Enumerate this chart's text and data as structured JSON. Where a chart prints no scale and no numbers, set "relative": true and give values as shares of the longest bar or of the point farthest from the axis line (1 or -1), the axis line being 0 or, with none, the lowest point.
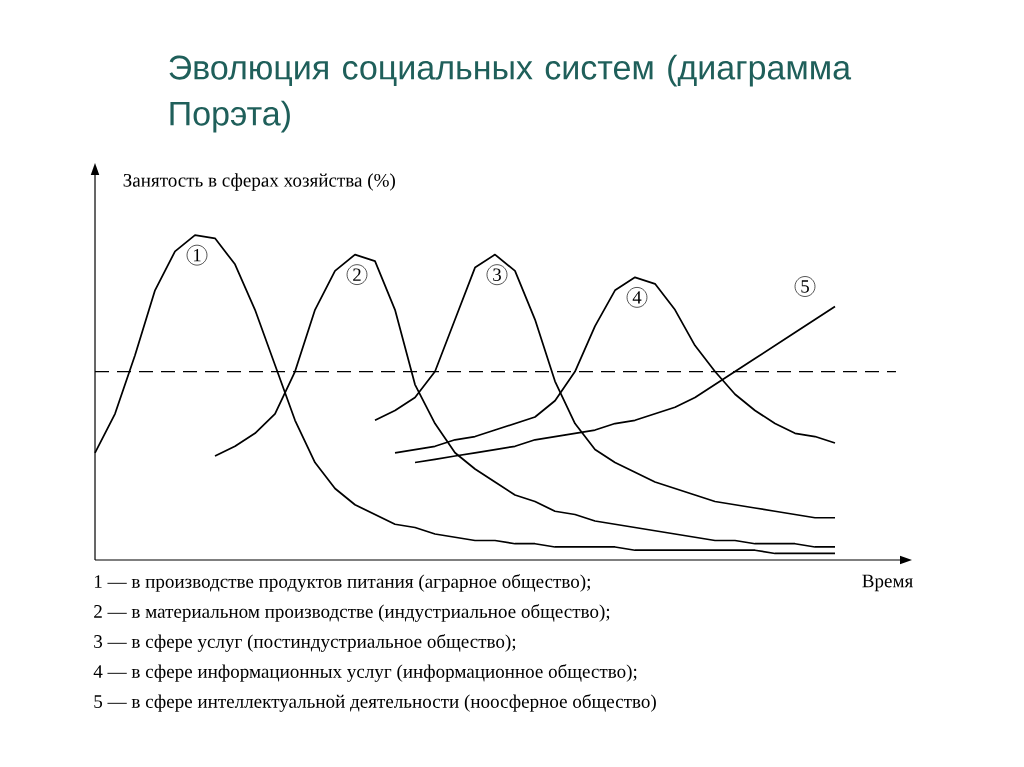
{
  "chart_data": {
    "type": "line",
    "title": "Эволюция социальных систем (диаграмма Порэта)",
    "xlabel": "Время",
    "ylabel": "Занятость в сферах хозяйства (%)",
    "relative": true,
    "categories": [
      null,
      null,
      null,
      null,
      null,
      null,
      null,
      null,
      null,
      null,
      null,
      null,
      null,
      null,
      null,
      null,
      null,
      null,
      null,
      null,
      null,
      null,
      null,
      null,
      null,
      null,
      null,
      null,
      null,
      null,
      null,
      null,
      null,
      null,
      null,
      null,
      null,
      null
    ],
    "series": [
      {
        "name": "1",
        "color": "#000000",
        "values": [
          0.33,
          0.45,
          0.63,
          0.83,
          0.95,
          1.0,
          0.99,
          0.91,
          0.77,
          0.6,
          0.43,
          0.3,
          0.22,
          0.17,
          0.14,
          0.11,
          0.1,
          0.08,
          0.07,
          0.06,
          0.06,
          0.05,
          0.05,
          0.04,
          0.04,
          0.04,
          0.04,
          0.03,
          0.03,
          0.03,
          0.03,
          0.03,
          0.03,
          0.03,
          0.02,
          0.02,
          0.02,
          0.02
        ]
      },
      {
        "name": "2",
        "color": "#000000",
        "values": [
          null,
          null,
          null,
          null,
          null,
          null,
          0.32,
          0.35,
          0.39,
          0.45,
          0.58,
          0.77,
          0.89,
          0.94,
          0.92,
          0.77,
          0.54,
          0.42,
          0.33,
          0.28,
          0.24,
          0.2,
          0.18,
          0.15,
          0.14,
          0.12,
          0.11,
          0.1,
          0.09,
          0.08,
          0.07,
          0.06,
          0.06,
          0.05,
          0.05,
          0.05,
          0.04,
          0.04
        ]
      },
      {
        "name": "3",
        "color": "#000000",
        "values": [
          null,
          null,
          null,
          null,
          null,
          null,
          null,
          null,
          null,
          null,
          null,
          null,
          null,
          null,
          0.43,
          0.46,
          0.5,
          0.58,
          0.74,
          0.9,
          0.94,
          0.89,
          0.74,
          0.55,
          0.42,
          0.34,
          0.3,
          0.27,
          0.24,
          0.22,
          0.2,
          0.18,
          0.17,
          0.16,
          0.15,
          0.14,
          0.13,
          0.13
        ]
      },
      {
        "name": "4",
        "color": "#000000",
        "values": [
          null,
          null,
          null,
          null,
          null,
          null,
          null,
          null,
          null,
          null,
          null,
          null,
          null,
          null,
          null,
          0.33,
          0.34,
          0.35,
          0.37,
          0.38,
          0.4,
          0.42,
          0.44,
          0.49,
          0.58,
          0.72,
          0.83,
          0.87,
          0.85,
          0.77,
          0.66,
          0.58,
          0.51,
          0.46,
          0.42,
          0.39,
          0.38,
          0.36
        ]
      },
      {
        "name": "5",
        "color": "#000000",
        "values": [
          null,
          null,
          null,
          null,
          null,
          null,
          null,
          null,
          null,
          null,
          null,
          null,
          null,
          null,
          null,
          null,
          0.3,
          0.31,
          0.32,
          0.33,
          0.34,
          0.35,
          0.37,
          0.38,
          0.39,
          0.4,
          0.42,
          0.43,
          0.45,
          0.47,
          0.5,
          0.54,
          0.58,
          0.62,
          0.66,
          0.7,
          0.74,
          0.78
        ]
      }
    ],
    "ref_lines": [
      {
        "axis": "y",
        "value": 0.58,
        "line_style": "dashed",
        "color": "#000000"
      }
    ],
    "annotations": [
      "1 — в производстве продуктов питания (аграрное общество);",
      "2 — в материальном производстве (индустриальное общество);",
      "3 — в сфере услуг (постиндустриальное общество);",
      "4 — в сфере информационных услуг (информационное общество);",
      "5 — в сфере интеллектуальной деятельности (ноосферное общество)"
    ]
  }
}
